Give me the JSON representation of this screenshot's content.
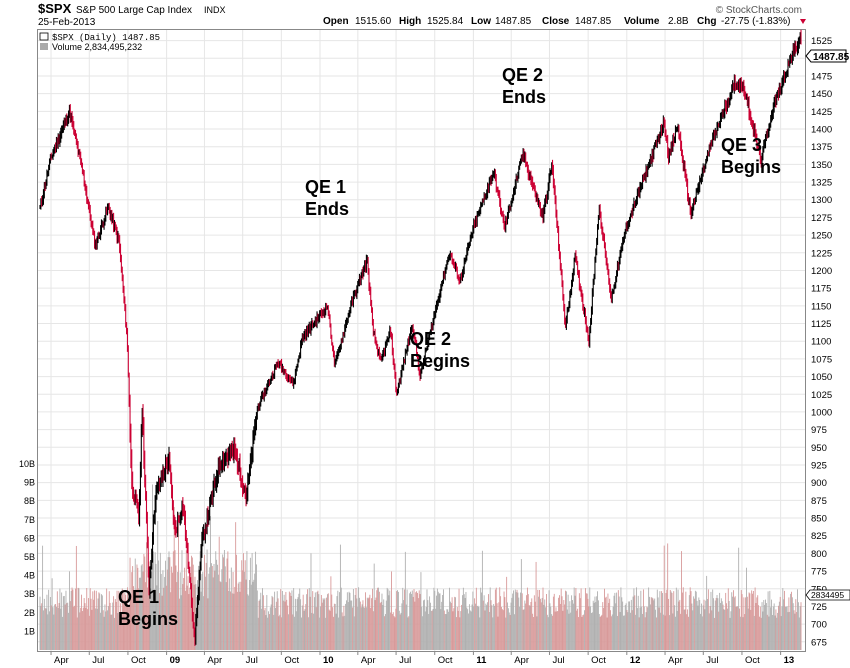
{
  "header": {
    "symbol": "$SPX",
    "name": "S&P 500 Large Cap Index",
    "exchange": "INDX",
    "date": "25-Feb-2013",
    "open_label": "Open",
    "open": "1515.60",
    "high_label": "High",
    "high": "1525.84",
    "low_label": "Low",
    "low": "1487.85",
    "close_label": "Close",
    "close": "1487.85",
    "volume_label": "Volume",
    "volume": "2.8B",
    "chg_label": "Chg",
    "chg": "-27.75 (-1.83%)",
    "watermark": "© StockCharts.com"
  },
  "legend": {
    "price": "$SPX (Daily) 1487.85",
    "volume": "Volume 2,834,495,232"
  },
  "colors": {
    "up": "#000000",
    "down": "#cc0033",
    "volume": "#d89a9a",
    "volume_dark": "#b0b0b0",
    "grid": "#e6e6e6"
  },
  "chart_data": {
    "type": "line",
    "title": "$SPX S&P 500 Large Cap Index INDX",
    "x_tick_labels": [
      "Apr",
      "Jul",
      "Oct",
      "09",
      "Apr",
      "Jul",
      "Oct",
      "10",
      "Apr",
      "Jul",
      "Oct",
      "11",
      "Apr",
      "Jul",
      "Oct",
      "12",
      "Apr",
      "Jul",
      "Oct",
      "13"
    ],
    "y_ticks": [
      675,
      700,
      725,
      750,
      775,
      800,
      825,
      850,
      875,
      900,
      925,
      950,
      975,
      1000,
      1025,
      1050,
      1075,
      1100,
      1125,
      1150,
      1175,
      1200,
      1225,
      1250,
      1275,
      1300,
      1325,
      1350,
      1375,
      1400,
      1425,
      1450,
      1475,
      1500,
      1525
    ],
    "ylim": [
      662,
      1540
    ],
    "volume_ticks": [
      "1B",
      "2B",
      "3B",
      "4B",
      "5B",
      "6B",
      "7B",
      "8B",
      "9B",
      "10B"
    ],
    "current_value_label": "1487.85",
    "current_volume_label": "2834495",
    "series": [
      {
        "name": "$SPX (Daily)",
        "x": [
          "2008-03-01",
          "2008-04-01",
          "2008-05-15",
          "2008-06-15",
          "2008-07-15",
          "2008-08-15",
          "2008-09-10",
          "2008-09-29",
          "2008-10-10",
          "2008-10-27",
          "2008-11-04",
          "2008-11-20",
          "2008-12-05",
          "2009-01-06",
          "2009-01-20",
          "2009-02-09",
          "2009-03-09",
          "2009-03-26",
          "2009-05-08",
          "2009-06-12",
          "2009-07-10",
          "2009-08-05",
          "2009-09-23",
          "2009-10-30",
          "2009-11-20",
          "2010-01-19",
          "2010-02-05",
          "2010-03-15",
          "2010-04-23",
          "2010-05-07",
          "2010-05-25",
          "2010-06-18",
          "2010-07-02",
          "2010-08-09",
          "2010-08-27",
          "2010-10-15",
          "2010-11-05",
          "2010-11-30",
          "2010-12-31",
          "2011-02-18",
          "2011-03-16",
          "2011-04-29",
          "2011-06-15",
          "2011-07-07",
          "2011-08-08",
          "2011-08-31",
          "2011-10-03",
          "2011-10-27",
          "2011-11-25",
          "2011-12-30",
          "2012-03-30",
          "2012-04-10",
          "2012-05-01",
          "2012-06-01",
          "2012-07-20",
          "2012-09-14",
          "2012-10-05",
          "2012-11-15",
          "2012-12-14",
          "2013-01-25",
          "2013-02-19",
          "2013-02-25"
        ],
        "y": [
          1275,
          1360,
          1425,
          1340,
          1235,
          1290,
          1240,
          1105,
          900,
          850,
          1005,
          750,
          880,
          935,
          830,
          870,
          680,
          815,
          930,
          945,
          880,
          1005,
          1070,
          1040,
          1105,
          1150,
          1065,
          1150,
          1215,
          1115,
          1070,
          1115,
          1025,
          1125,
          1050,
          1175,
          1225,
          1185,
          1258,
          1340,
          1260,
          1365,
          1275,
          1350,
          1120,
          1220,
          1100,
          1290,
          1160,
          1260,
          1410,
          1360,
          1405,
          1280,
          1380,
          1465,
          1460,
          1355,
          1430,
          1500,
          1530,
          1487.85
        ]
      }
    ],
    "annotations": [
      {
        "text": [
          "QE 1",
          "Begins"
        ],
        "date": "2008-11-25"
      },
      {
        "text": [
          "QE 1",
          "Ends"
        ],
        "date": "2010-03-31"
      },
      {
        "text": [
          "QE 2",
          "Begins"
        ],
        "date": "2010-08-27"
      },
      {
        "text": [
          "QE 2",
          "Ends"
        ],
        "date": "2011-06-30"
      },
      {
        "text": [
          "QE 3",
          "Begins"
        ],
        "date": "2012-09-13"
      }
    ]
  }
}
